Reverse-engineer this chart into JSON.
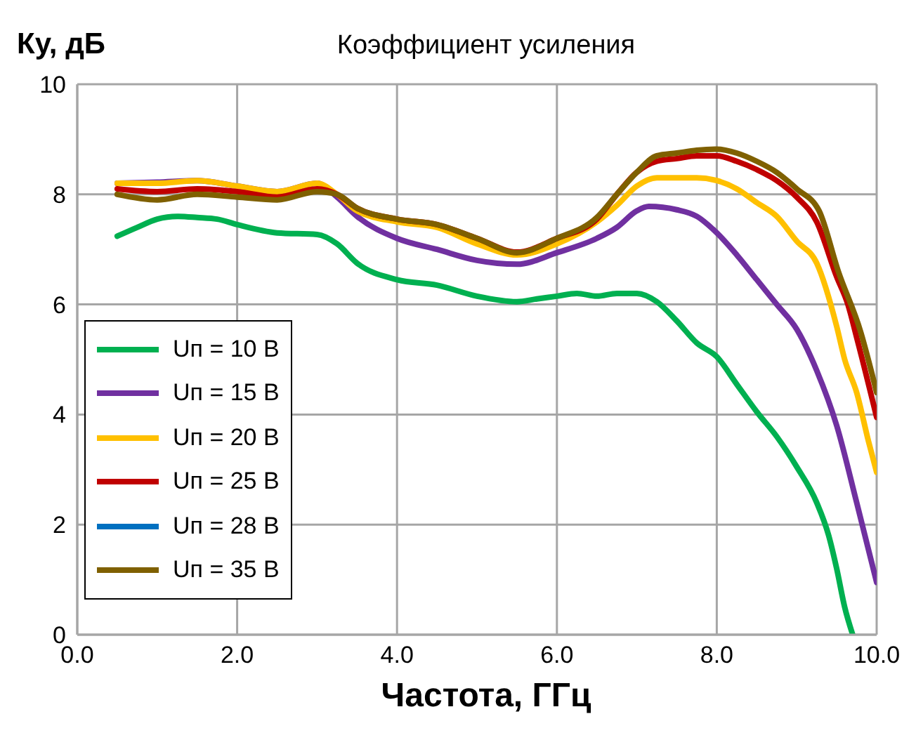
{
  "chart_data": {
    "type": "line",
    "title": "Коэффициент усиления",
    "xlabel": "Частота, ГГц",
    "ylabel": "Ку, дБ",
    "xlim": [
      0,
      10
    ],
    "xticks": [
      {
        "value": 0,
        "label": "0.0"
      },
      {
        "value": 2,
        "label": "2.0"
      },
      {
        "value": 4,
        "label": "4.0"
      },
      {
        "value": 6,
        "label": "6.0"
      },
      {
        "value": 8,
        "label": "8.0"
      },
      {
        "value": 10,
        "label": "10.0"
      }
    ],
    "ylim": [
      0,
      10
    ],
    "yticks": [
      0,
      2,
      4,
      6,
      8,
      10
    ],
    "grid": true,
    "legend": "bottom left",
    "marker": "none",
    "line_style": "solid",
    "series": [
      {
        "name": "Uп = 10 В",
        "color": "#00b050",
        "x": [
          0.5,
          0.75,
          1.0,
          1.25,
          1.5,
          1.75,
          2.0,
          2.5,
          3.0,
          3.25,
          3.5,
          4.0,
          4.5,
          5.0,
          5.5,
          5.75,
          6.0,
          6.25,
          6.5,
          6.75,
          7.0,
          7.25,
          7.5,
          7.75,
          8.0,
          8.25,
          8.5,
          8.75,
          9.0,
          9.25,
          9.4,
          9.5,
          9.6,
          9.7
        ],
        "values": [
          7.24,
          7.4,
          7.55,
          7.6,
          7.58,
          7.55,
          7.45,
          7.3,
          7.27,
          7.1,
          6.75,
          6.45,
          6.35,
          6.15,
          6.05,
          6.1,
          6.15,
          6.2,
          6.15,
          6.2,
          6.2,
          6.05,
          5.7,
          5.3,
          5.05,
          4.55,
          4.05,
          3.6,
          3.05,
          2.4,
          1.8,
          1.2,
          0.5,
          0
        ]
      },
      {
        "name": "Uп = 15 В",
        "color": "#7030a0",
        "x": [
          0.5,
          1.0,
          1.5,
          2.0,
          2.5,
          3.0,
          3.25,
          3.5,
          4.0,
          4.5,
          5.0,
          5.5,
          6.0,
          6.5,
          6.75,
          7.0,
          7.15,
          7.5,
          7.75,
          8.0,
          8.25,
          8.5,
          8.75,
          9.0,
          9.25,
          9.5,
          9.75,
          10.0
        ],
        "values": [
          8.2,
          8.22,
          8.25,
          8.15,
          8.05,
          8.2,
          7.95,
          7.6,
          7.2,
          7.0,
          6.8,
          6.73,
          6.94,
          7.2,
          7.4,
          7.7,
          7.78,
          7.72,
          7.6,
          7.3,
          6.9,
          6.45,
          6.0,
          5.55,
          4.8,
          3.8,
          2.4,
          0.95
        ]
      },
      {
        "name": "Uп = 20 В",
        "color": "#ffc000",
        "x": [
          0.5,
          1.0,
          1.5,
          2.0,
          2.5,
          3.0,
          3.25,
          3.5,
          4.0,
          4.5,
          5.0,
          5.5,
          6.0,
          6.5,
          6.75,
          7.0,
          7.25,
          7.5,
          7.75,
          8.0,
          8.25,
          8.5,
          8.75,
          9.0,
          9.25,
          9.5,
          9.6,
          9.75,
          9.9,
          10.0
        ],
        "values": [
          8.2,
          8.2,
          8.25,
          8.15,
          8.05,
          8.2,
          8.0,
          7.7,
          7.5,
          7.4,
          7.1,
          6.9,
          7.1,
          7.5,
          7.8,
          8.15,
          8.3,
          8.3,
          8.3,
          8.25,
          8.1,
          7.85,
          7.6,
          7.15,
          6.75,
          5.6,
          5.0,
          4.4,
          3.5,
          2.95
        ]
      },
      {
        "name": "Uп = 25 В",
        "color": "#c00000",
        "x": [
          0.5,
          1.0,
          1.5,
          2.0,
          2.5,
          3.0,
          3.25,
          3.5,
          4.0,
          4.5,
          5.0,
          5.5,
          6.0,
          6.5,
          6.75,
          7.0,
          7.25,
          7.5,
          7.75,
          8.0,
          8.25,
          8.5,
          8.75,
          9.0,
          9.25,
          9.5,
          9.64,
          9.75,
          10.0
        ],
        "values": [
          8.1,
          8.05,
          8.1,
          8.05,
          7.95,
          8.1,
          8.0,
          7.75,
          7.55,
          7.45,
          7.2,
          6.95,
          7.2,
          7.55,
          8.0,
          8.4,
          8.6,
          8.65,
          8.7,
          8.7,
          8.6,
          8.45,
          8.25,
          7.95,
          7.5,
          6.5,
          6.0,
          5.4,
          3.95
        ]
      },
      {
        "name": "Uп = 28 В",
        "color": "#0070c0"
      },
      {
        "name": "Uп = 35 В",
        "color": "#7f6000",
        "x": [
          0.5,
          1.0,
          1.5,
          2.0,
          2.5,
          3.0,
          3.25,
          3.5,
          4.0,
          4.5,
          5.0,
          5.5,
          6.0,
          6.5,
          6.75,
          7.0,
          7.25,
          7.5,
          7.75,
          8.0,
          8.25,
          8.5,
          8.75,
          9.0,
          9.28,
          9.52,
          9.8,
          10.0
        ],
        "values": [
          8.0,
          7.9,
          8.0,
          7.95,
          7.9,
          8.05,
          8.0,
          7.75,
          7.55,
          7.45,
          7.2,
          6.94,
          7.2,
          7.58,
          8.0,
          8.4,
          8.7,
          8.75,
          8.8,
          8.82,
          8.75,
          8.6,
          8.4,
          8.1,
          7.7,
          6.6,
          5.5,
          4.4
        ]
      }
    ]
  }
}
